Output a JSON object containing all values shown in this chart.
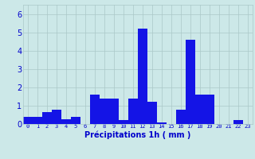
{
  "hours": [
    0,
    1,
    2,
    3,
    4,
    5,
    6,
    7,
    8,
    9,
    10,
    11,
    12,
    13,
    14,
    15,
    16,
    17,
    18,
    19,
    20,
    21,
    22,
    23
  ],
  "values": [
    0.4,
    0.4,
    0.65,
    0.8,
    0.25,
    0.4,
    0.0,
    1.6,
    1.4,
    1.4,
    0.2,
    1.4,
    5.2,
    1.2,
    0.1,
    0.0,
    0.8,
    4.6,
    1.6,
    1.6,
    0.0,
    0.0,
    0.2,
    0.0
  ],
  "bar_color": "#1414e6",
  "bg_color": "#cce8e8",
  "grid_color": "#aac8c8",
  "xlabel": "Précipitations 1h ( mm )",
  "xlabel_color": "#0000cc",
  "tick_color": "#0000cc",
  "ylim": [
    0,
    6.5
  ],
  "yticks": [
    0,
    1,
    2,
    3,
    4,
    5,
    6
  ],
  "bar_width": 1.0
}
